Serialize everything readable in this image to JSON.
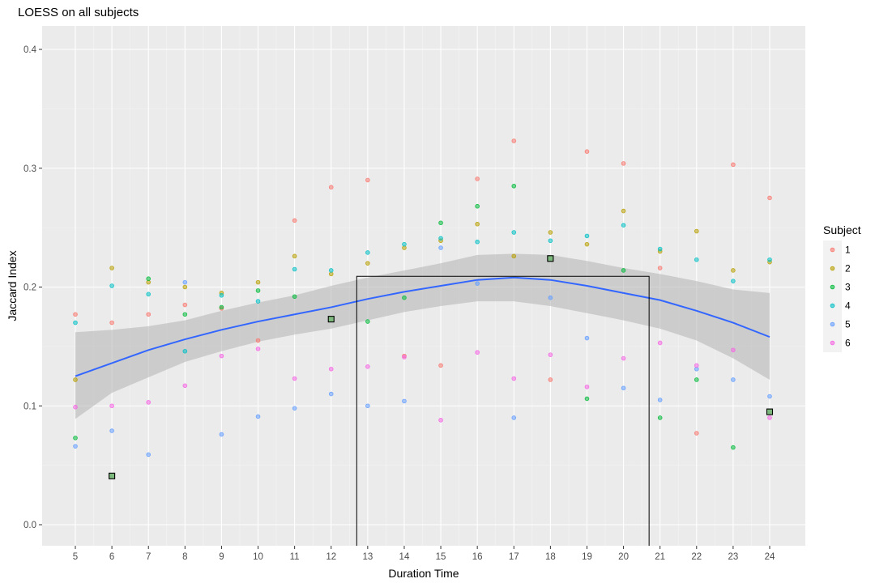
{
  "chart_data": {
    "type": "scatter",
    "title": "LOESS on all subjects",
    "xlabel": "Duration Time",
    "ylabel": "Jaccard Index",
    "xlim": [
      4.5,
      25
    ],
    "ylim": [
      -0.02,
      0.42
    ],
    "x_ticks": [
      5,
      6,
      7,
      8,
      9,
      10,
      11,
      12,
      13,
      14,
      15,
      16,
      17,
      18,
      19,
      20,
      21,
      22,
      23,
      24
    ],
    "y_ticks": [
      0.0,
      0.1,
      0.2,
      0.3,
      0.4
    ],
    "y_tick_labels": [
      "0.0",
      "0.1",
      "0.2",
      "0.3",
      "0.4"
    ],
    "grid": true,
    "legend": {
      "title": "Subject",
      "position": "right"
    },
    "series": [
      {
        "name": "1",
        "color": "#F8766D",
        "points": [
          [
            5,
            0.177
          ],
          [
            6,
            0.17
          ],
          [
            7,
            0.177
          ],
          [
            8,
            0.185
          ],
          [
            9,
            0.182
          ],
          [
            10,
            0.155
          ],
          [
            11,
            0.256
          ],
          [
            12,
            0.284
          ],
          [
            13,
            0.29
          ],
          [
            14,
            0.142
          ],
          [
            15,
            0.134
          ],
          [
            16,
            0.291
          ],
          [
            17,
            0.323
          ],
          [
            18,
            0.122
          ],
          [
            19,
            0.314
          ],
          [
            20,
            0.304
          ],
          [
            21,
            0.216
          ],
          [
            22,
            0.077
          ],
          [
            23,
            0.303
          ],
          [
            24,
            0.275
          ]
        ]
      },
      {
        "name": "2",
        "color": "#B79F00",
        "points": [
          [
            5,
            0.122
          ],
          [
            6,
            0.216
          ],
          [
            7,
            0.204
          ],
          [
            8,
            0.2
          ],
          [
            9,
            0.195
          ],
          [
            10,
            0.204
          ],
          [
            11,
            0.226
          ],
          [
            12,
            0.211
          ],
          [
            13,
            0.22
          ],
          [
            14,
            0.233
          ],
          [
            15,
            0.239
          ],
          [
            16,
            0.253
          ],
          [
            17,
            0.226
          ],
          [
            18,
            0.246
          ],
          [
            19,
            0.236
          ],
          [
            20,
            0.264
          ],
          [
            21,
            0.23
          ],
          [
            22,
            0.247
          ],
          [
            23,
            0.214
          ],
          [
            24,
            0.221
          ]
        ]
      },
      {
        "name": "3",
        "color": "#00BA38",
        "points": [
          [
            5,
            0.073
          ],
          [
            6,
            0.041
          ],
          [
            7,
            0.207
          ],
          [
            8,
            0.177
          ],
          [
            9,
            0.183
          ],
          [
            10,
            0.197
          ],
          [
            11,
            0.192
          ],
          [
            12,
            0.173
          ],
          [
            13,
            0.171
          ],
          [
            14,
            0.191
          ],
          [
            15,
            0.254
          ],
          [
            16,
            0.268
          ],
          [
            17,
            0.285
          ],
          [
            18,
            0.224
          ],
          [
            19,
            0.106
          ],
          [
            20,
            0.214
          ],
          [
            21,
            0.09
          ],
          [
            22,
            0.122
          ],
          [
            23,
            0.065
          ],
          [
            24,
            0.095
          ]
        ]
      },
      {
        "name": "4",
        "color": "#00BFC4",
        "points": [
          [
            5,
            0.17
          ],
          [
            6,
            0.201
          ],
          [
            7,
            0.194
          ],
          [
            8,
            0.146
          ],
          [
            9,
            0.193
          ],
          [
            10,
            0.188
          ],
          [
            11,
            0.215
          ],
          [
            12,
            0.214
          ],
          [
            13,
            0.229
          ],
          [
            14,
            0.236
          ],
          [
            15,
            0.241
          ],
          [
            16,
            0.238
          ],
          [
            17,
            0.246
          ],
          [
            18,
            0.239
          ],
          [
            19,
            0.243
          ],
          [
            20,
            0.252
          ],
          [
            21,
            0.232
          ],
          [
            22,
            0.223
          ],
          [
            23,
            0.205
          ],
          [
            24,
            0.223
          ]
        ]
      },
      {
        "name": "5",
        "color": "#619CFF",
        "points": [
          [
            5,
            0.066
          ],
          [
            6,
            0.079
          ],
          [
            7,
            0.059
          ],
          [
            8,
            0.204
          ],
          [
            9,
            0.076
          ],
          [
            10,
            0.091
          ],
          [
            11,
            0.098
          ],
          [
            12,
            0.11
          ],
          [
            13,
            0.1
          ],
          [
            14,
            0.104
          ],
          [
            15,
            0.233
          ],
          [
            16,
            0.203
          ],
          [
            17,
            0.09
          ],
          [
            18,
            0.191
          ],
          [
            19,
            0.157
          ],
          [
            20,
            0.115
          ],
          [
            21,
            0.105
          ],
          [
            22,
            0.131
          ],
          [
            23,
            0.122
          ],
          [
            24,
            0.108
          ]
        ]
      },
      {
        "name": "6",
        "color": "#F564E3",
        "points": [
          [
            5,
            0.099
          ],
          [
            6,
            0.1
          ],
          [
            7,
            0.103
          ],
          [
            8,
            0.117
          ],
          [
            9,
            0.142
          ],
          [
            10,
            0.148
          ],
          [
            11,
            0.123
          ],
          [
            12,
            0.131
          ],
          [
            13,
            0.133
          ],
          [
            14,
            0.141
          ],
          [
            15,
            0.088
          ],
          [
            16,
            0.145
          ],
          [
            17,
            0.123
          ],
          [
            18,
            0.143
          ],
          [
            19,
            0.116
          ],
          [
            20,
            0.14
          ],
          [
            21,
            0.153
          ],
          [
            22,
            0.134
          ],
          [
            23,
            0.147
          ],
          [
            24,
            0.09
          ]
        ]
      }
    ],
    "highlighted_points": [
      [
        6,
        0.041
      ],
      [
        12,
        0.173
      ],
      [
        18,
        0.224
      ],
      [
        24,
        0.095
      ]
    ],
    "loess": {
      "color": "#3366FF",
      "band_color": "#B3B3B3",
      "x": [
        5,
        6,
        7,
        8,
        9,
        10,
        11,
        12,
        13,
        14,
        15,
        16,
        17,
        18,
        19,
        20,
        21,
        22,
        23,
        24
      ],
      "y": [
        0.125,
        0.136,
        0.147,
        0.156,
        0.164,
        0.171,
        0.177,
        0.183,
        0.19,
        0.196,
        0.201,
        0.206,
        0.208,
        0.206,
        0.201,
        0.195,
        0.189,
        0.18,
        0.17,
        0.158
      ],
      "lower": [
        0.089,
        0.111,
        0.124,
        0.137,
        0.146,
        0.154,
        0.16,
        0.165,
        0.172,
        0.179,
        0.184,
        0.188,
        0.188,
        0.184,
        0.178,
        0.172,
        0.165,
        0.155,
        0.14,
        0.122
      ],
      "upper": [
        0.162,
        0.164,
        0.167,
        0.172,
        0.18,
        0.187,
        0.193,
        0.201,
        0.208,
        0.214,
        0.22,
        0.227,
        0.228,
        0.227,
        0.222,
        0.216,
        0.211,
        0.205,
        0.198,
        0.195
      ]
    },
    "annotation_rect": {
      "x0": 12.7,
      "x1": 20.7,
      "y0": -0.02,
      "y1": 0.209,
      "color": "#000000"
    }
  }
}
